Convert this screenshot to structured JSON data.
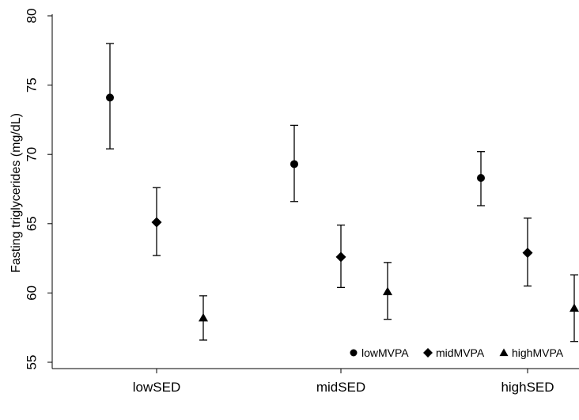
{
  "chart_data": {
    "type": "scatter",
    "title": "",
    "xlabel": "",
    "ylabel": "Fasting triglycerides (mg/dL)",
    "categories": [
      "lowSED",
      "midSED",
      "highSED"
    ],
    "ylim": [
      55,
      80
    ],
    "yticks": [
      "55",
      "60",
      "65",
      "70",
      "75",
      "80"
    ],
    "grid": false,
    "legend_position": "bottom-right",
    "error_bars": true,
    "series": [
      {
        "name": "lowMVPA",
        "marker": "circle",
        "values": [
          74.1,
          69.3,
          68.3
        ],
        "lower": [
          70.4,
          66.6,
          66.3
        ],
        "upper": [
          78.0,
          72.1,
          70.2
        ]
      },
      {
        "name": "midMVPA",
        "marker": "diamond",
        "values": [
          65.1,
          62.6,
          62.9
        ],
        "lower": [
          62.7,
          60.4,
          60.5
        ],
        "upper": [
          67.6,
          64.9,
          65.4
        ]
      },
      {
        "name": "highMVPA",
        "marker": "triangle",
        "values": [
          58.2,
          60.1,
          58.9
        ],
        "lower": [
          56.6,
          58.1,
          56.5
        ],
        "upper": [
          59.8,
          62.2,
          61.3
        ]
      }
    ],
    "colors": {
      "marker": "#000000",
      "axis": "#000000"
    }
  }
}
